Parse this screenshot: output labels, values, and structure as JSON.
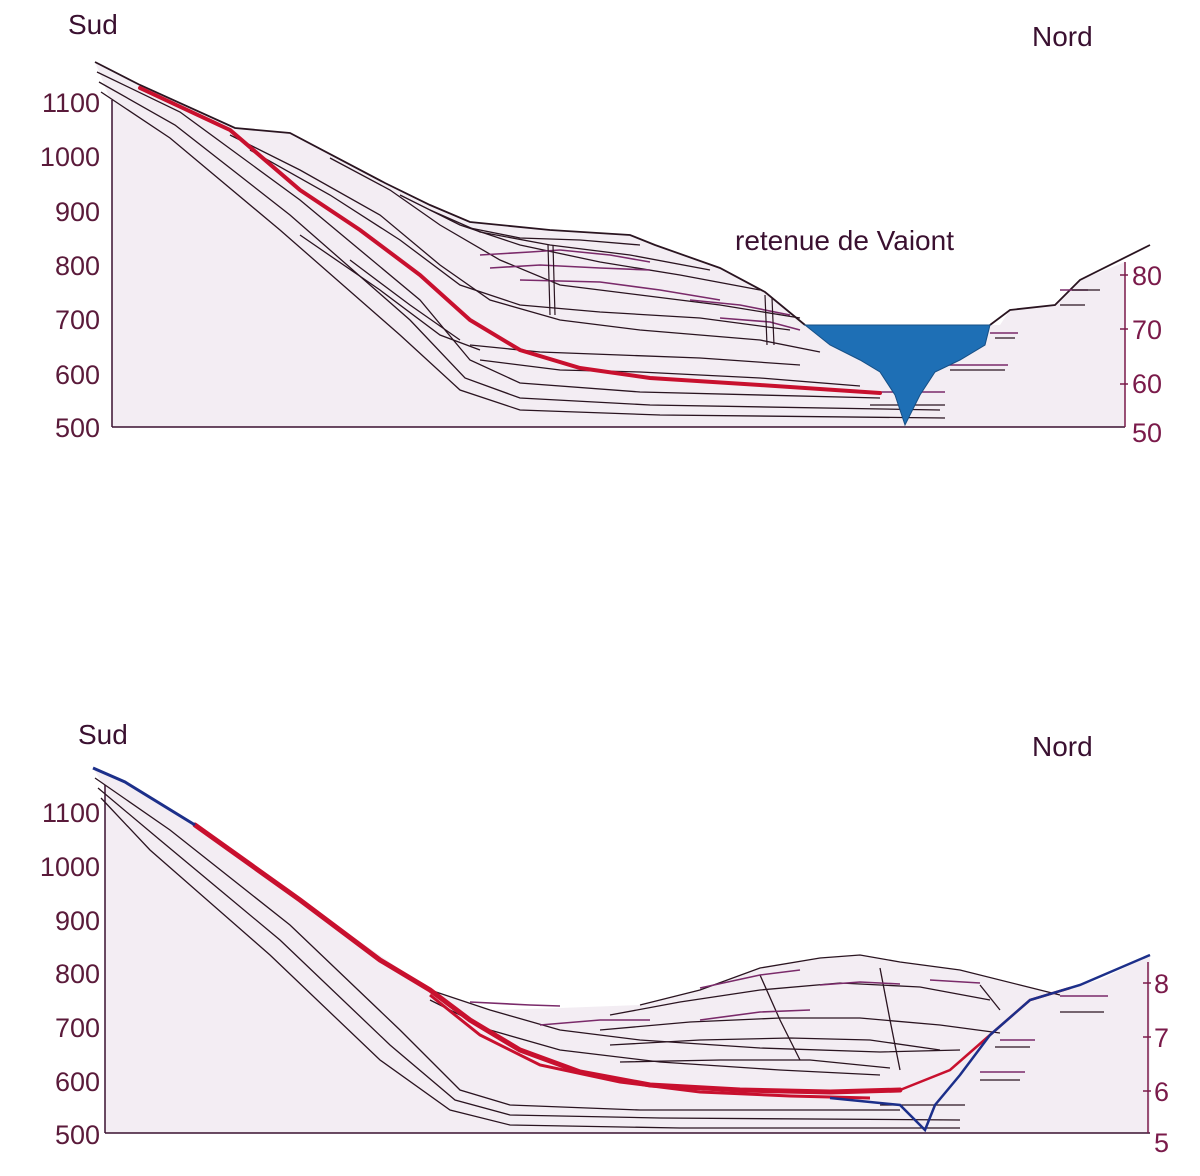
{
  "top_section": {
    "direction_left": "Sud",
    "direction_right": "Nord",
    "annotation": "retenue de Vaiont",
    "left_axis_ticks": [
      "1100",
      "1000",
      "900",
      "800",
      "700",
      "600",
      "500"
    ],
    "right_axis_ticks": [
      "80",
      "70",
      "60",
      "50"
    ]
  },
  "bottom_section": {
    "direction_left": "Sud",
    "direction_right": "Nord",
    "left_axis_ticks": [
      "1100",
      "1000",
      "900",
      "800",
      "700",
      "600",
      "500"
    ],
    "right_axis_ticks": [
      "8",
      "7",
      "6",
      "5"
    ]
  },
  "colors": {
    "strata_line": "#2a1420",
    "bedding_line": "#7a2a6a",
    "slip_surface": "#c8102e",
    "reservoir_water": "#1e6fb5",
    "terrain_outline_after": "#1c2f8a",
    "ground_fill": "#f2ecf2",
    "axis_text": "#5a1a3a"
  }
}
